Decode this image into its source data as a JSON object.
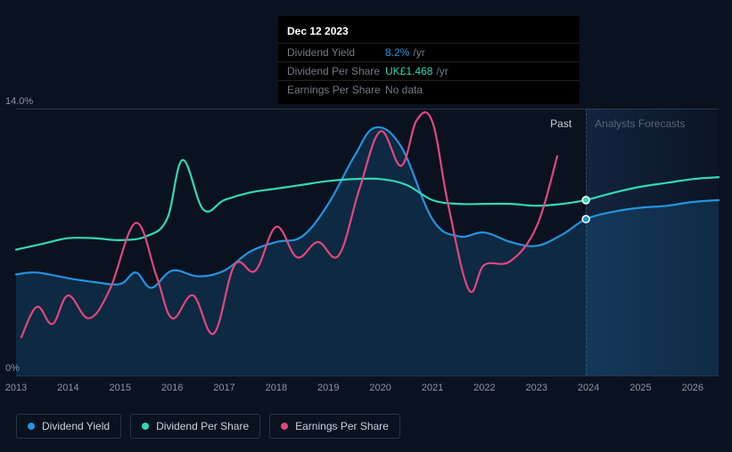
{
  "tooltip": {
    "date": "Dec 12 2023",
    "rows": [
      {
        "label": "Dividend Yield",
        "value": "8.2%",
        "suffix": "/yr",
        "color": "#2394df"
      },
      {
        "label": "Dividend Per Share",
        "value": "UK£1.468",
        "suffix": "/yr",
        "color": "#31d9b3"
      },
      {
        "label": "Earnings Per Share",
        "value": "No data",
        "suffix": "",
        "color": "#727a86"
      }
    ]
  },
  "chart": {
    "type": "line",
    "background_color": "#0a1220",
    "grid_color": "#2a3444",
    "ylim": [
      0,
      14
    ],
    "y_ticks": [
      {
        "value": 0,
        "label": "0%"
      },
      {
        "value": 14,
        "label": "14.0%"
      }
    ],
    "x_domain": [
      2013,
      2026.5
    ],
    "x_ticks": [
      2013,
      2014,
      2015,
      2016,
      2017,
      2018,
      2019,
      2020,
      2021,
      2022,
      2023,
      2024,
      2025,
      2026
    ],
    "marker_x": 2023.95,
    "regions": {
      "past": {
        "label": "Past",
        "color": "#c8d0dc",
        "end_x": 2023.95
      },
      "forecast": {
        "label": "Analysts Forecasts",
        "color": "#5a6576",
        "start_x": 2023.95
      }
    },
    "series": [
      {
        "id": "dividend_yield",
        "name": "Dividend Yield",
        "color": "#2394df",
        "area_fill": "rgba(35,148,223,0.18)",
        "line_width": 2.2,
        "marker_at_split": true,
        "points": [
          [
            2013.0,
            5.3
          ],
          [
            2013.4,
            5.4
          ],
          [
            2014.0,
            5.1
          ],
          [
            2014.5,
            4.9
          ],
          [
            2015.0,
            4.8
          ],
          [
            2015.3,
            5.4
          ],
          [
            2015.6,
            4.6
          ],
          [
            2016.0,
            5.5
          ],
          [
            2016.5,
            5.2
          ],
          [
            2017.0,
            5.5
          ],
          [
            2017.5,
            6.5
          ],
          [
            2018.0,
            7.0
          ],
          [
            2018.5,
            7.3
          ],
          [
            2019.0,
            9.0
          ],
          [
            2019.5,
            11.5
          ],
          [
            2019.9,
            13.0
          ],
          [
            2020.4,
            12.0
          ],
          [
            2021.0,
            8.2
          ],
          [
            2021.5,
            7.3
          ],
          [
            2022.0,
            7.5
          ],
          [
            2022.5,
            7.0
          ],
          [
            2023.0,
            6.8
          ],
          [
            2023.5,
            7.4
          ],
          [
            2023.95,
            8.2
          ],
          [
            2024.5,
            8.6
          ],
          [
            2025.0,
            8.8
          ],
          [
            2025.5,
            8.9
          ],
          [
            2026.0,
            9.1
          ],
          [
            2026.5,
            9.2
          ]
        ]
      },
      {
        "id": "dividend_per_share",
        "name": "Dividend Per Share",
        "color": "#31d9b3",
        "line_width": 2.2,
        "marker_at_split": true,
        "points": [
          [
            2013.0,
            6.6
          ],
          [
            2013.5,
            6.9
          ],
          [
            2014.0,
            7.2
          ],
          [
            2014.5,
            7.2
          ],
          [
            2015.0,
            7.1
          ],
          [
            2015.5,
            7.3
          ],
          [
            2015.9,
            8.2
          ],
          [
            2016.2,
            11.3
          ],
          [
            2016.6,
            8.7
          ],
          [
            2017.0,
            9.2
          ],
          [
            2017.5,
            9.6
          ],
          [
            2018.0,
            9.8
          ],
          [
            2018.5,
            10.0
          ],
          [
            2019.0,
            10.2
          ],
          [
            2019.5,
            10.3
          ],
          [
            2020.0,
            10.3
          ],
          [
            2020.5,
            10.0
          ],
          [
            2021.0,
            9.2
          ],
          [
            2021.5,
            9.0
          ],
          [
            2022.0,
            9.0
          ],
          [
            2022.5,
            9.0
          ],
          [
            2023.0,
            8.9
          ],
          [
            2023.5,
            9.0
          ],
          [
            2023.95,
            9.2
          ],
          [
            2024.5,
            9.6
          ],
          [
            2025.0,
            9.9
          ],
          [
            2025.5,
            10.1
          ],
          [
            2026.0,
            10.3
          ],
          [
            2026.5,
            10.4
          ]
        ]
      },
      {
        "id": "earnings_per_share",
        "name": "Earnings Per Share",
        "color": "#e2477e",
        "line_width": 2.2,
        "marker_at_split": false,
        "points": [
          [
            2013.1,
            2.0
          ],
          [
            2013.4,
            3.6
          ],
          [
            2013.7,
            2.7
          ],
          [
            2014.0,
            4.2
          ],
          [
            2014.4,
            3.0
          ],
          [
            2014.8,
            4.5
          ],
          [
            2015.3,
            8.0
          ],
          [
            2015.7,
            5.2
          ],
          [
            2016.0,
            3.0
          ],
          [
            2016.4,
            4.2
          ],
          [
            2016.8,
            2.2
          ],
          [
            2017.2,
            5.8
          ],
          [
            2017.6,
            5.5
          ],
          [
            2018.0,
            7.8
          ],
          [
            2018.4,
            6.2
          ],
          [
            2018.8,
            7.0
          ],
          [
            2019.2,
            6.3
          ],
          [
            2019.6,
            9.8
          ],
          [
            2020.0,
            12.8
          ],
          [
            2020.4,
            11.0
          ],
          [
            2020.7,
            13.4
          ],
          [
            2021.0,
            13.3
          ],
          [
            2021.3,
            9.0
          ],
          [
            2021.7,
            4.5
          ],
          [
            2022.0,
            5.8
          ],
          [
            2022.5,
            6.0
          ],
          [
            2023.0,
            7.8
          ],
          [
            2023.4,
            11.5
          ]
        ]
      }
    ],
    "legend": [
      {
        "label": "Dividend Yield",
        "color": "#2394df"
      },
      {
        "label": "Dividend Per Share",
        "color": "#31d9b3"
      },
      {
        "label": "Earnings Per Share",
        "color": "#e2477e"
      }
    ],
    "label_color": "#8a95a8",
    "label_fontsize": 11
  }
}
